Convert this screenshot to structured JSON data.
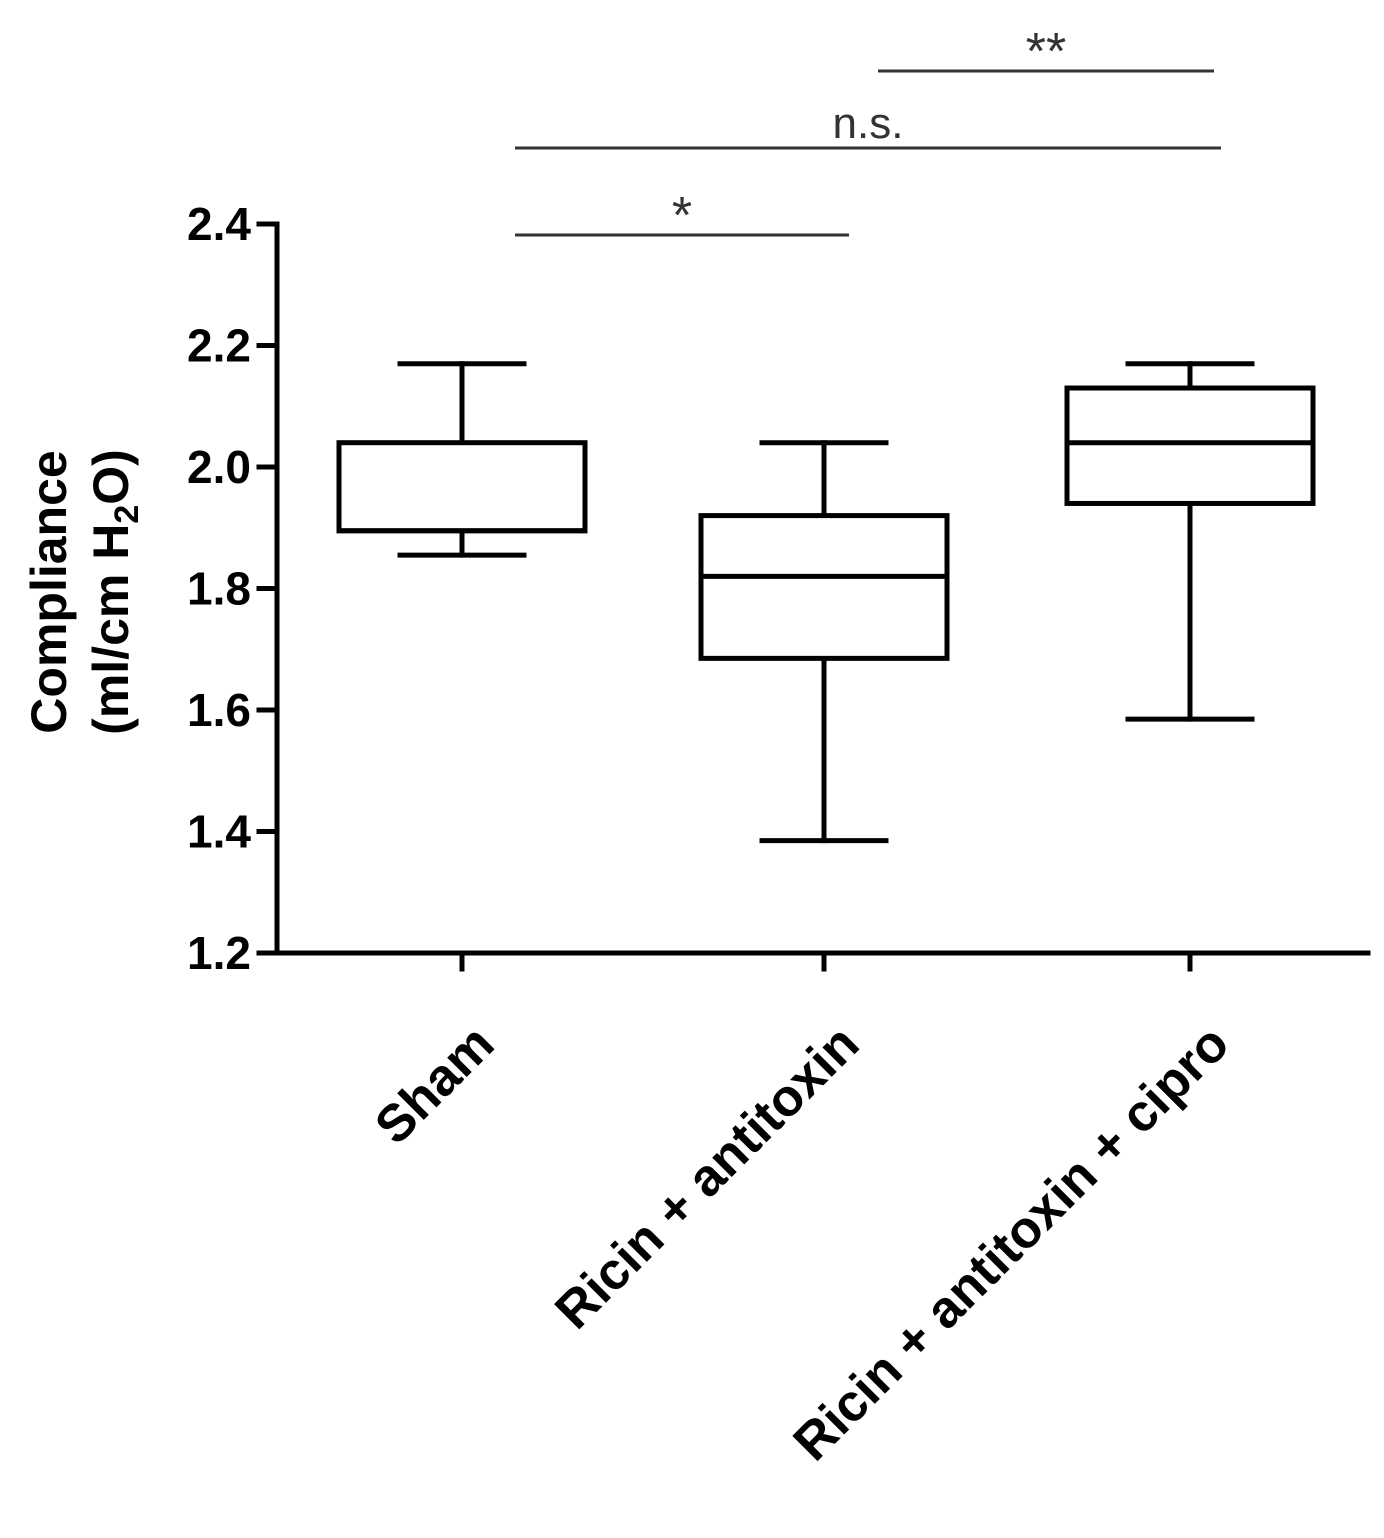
{
  "chart_data": {
    "type": "box",
    "ylabel_line1": "Compliance",
    "ylabel_line2_pre": "(ml/cm H",
    "ylabel_sub": "2",
    "ylabel_line2_post": "O)",
    "ylim": [
      1.2,
      2.4
    ],
    "yticks": [
      {
        "value": 1.2,
        "label": "1.2"
      },
      {
        "value": 1.4,
        "label": "1.4"
      },
      {
        "value": 1.6,
        "label": "1.6"
      },
      {
        "value": 1.8,
        "label": "1.8"
      },
      {
        "value": 2.0,
        "label": "2.0"
      },
      {
        "value": 2.2,
        "label": "2.2"
      },
      {
        "value": 2.4,
        "label": "2.4"
      }
    ],
    "grid": false,
    "categories": [
      "Sham",
      "Ricin + antitoxin",
      "Ricin + antitoxin + cipro"
    ],
    "boxes": [
      {
        "min": 1.855,
        "q1": 1.895,
        "median": 1.895,
        "q3": 2.04,
        "max": 2.17
      },
      {
        "min": 1.385,
        "q1": 1.685,
        "median": 1.82,
        "q3": 1.92,
        "max": 2.04
      },
      {
        "min": 1.585,
        "q1": 1.94,
        "median": 2.04,
        "q3": 2.13,
        "max": 2.17
      }
    ],
    "significance": [
      {
        "from": 0,
        "to": 1,
        "label": "*"
      },
      {
        "from": 0,
        "to": 2,
        "label": "n.s."
      },
      {
        "from": 1,
        "to": 2,
        "label": "**"
      }
    ]
  }
}
